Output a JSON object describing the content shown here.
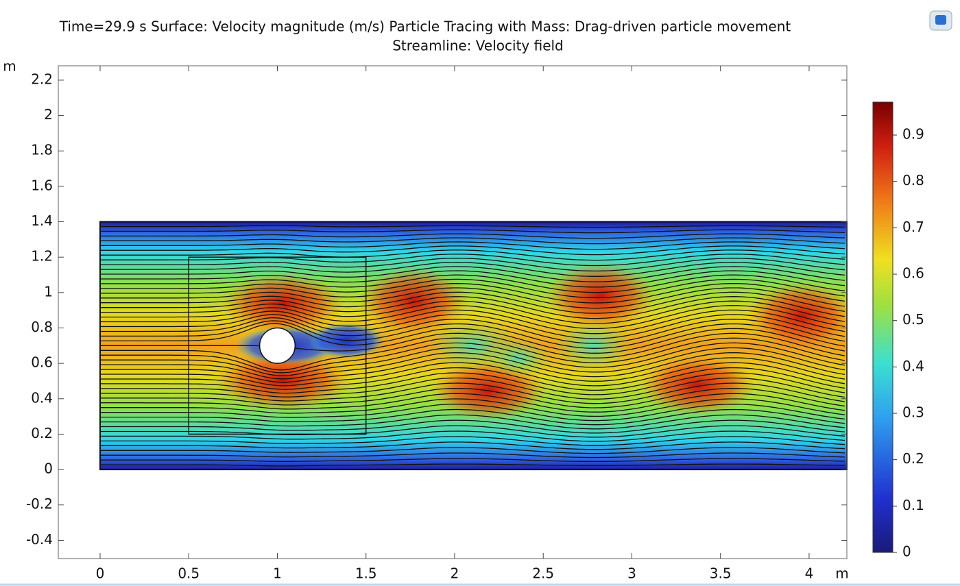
{
  "chart_data": {
    "type": "field",
    "title": "Time=29.9 s Surface: Velocity magnitude (m/s) Particle Tracing with Mass: Drag-driven particle movement",
    "subtitle": "Streamline: Velocity field",
    "x_unit": "m",
    "y_unit": "m",
    "xlim": [
      -0.236,
      4.213
    ],
    "ylim": [
      -0.503,
      2.281
    ],
    "xticks": [
      0,
      0.5,
      1,
      1.5,
      2,
      2.5,
      3,
      3.5,
      4
    ],
    "yticks": [
      -0.4,
      -0.2,
      0,
      0.2,
      0.4,
      0.6,
      0.8,
      1,
      1.2,
      1.4,
      1.6,
      1.8,
      2,
      2.2
    ],
    "colorbar": {
      "clim": [
        0,
        0.971
      ],
      "ticks": [
        0,
        0.1,
        0.2,
        0.3,
        0.4,
        0.5,
        0.6,
        0.7,
        0.8,
        0.9
      ]
    },
    "geometry": {
      "channel_y": [
        0,
        1.4
      ],
      "cylinder_center": [
        1,
        0.7
      ],
      "cylinder_radius": 0.1,
      "box_x": [
        0.5,
        1.5
      ],
      "box_y": [
        0.2,
        1.2
      ]
    }
  }
}
